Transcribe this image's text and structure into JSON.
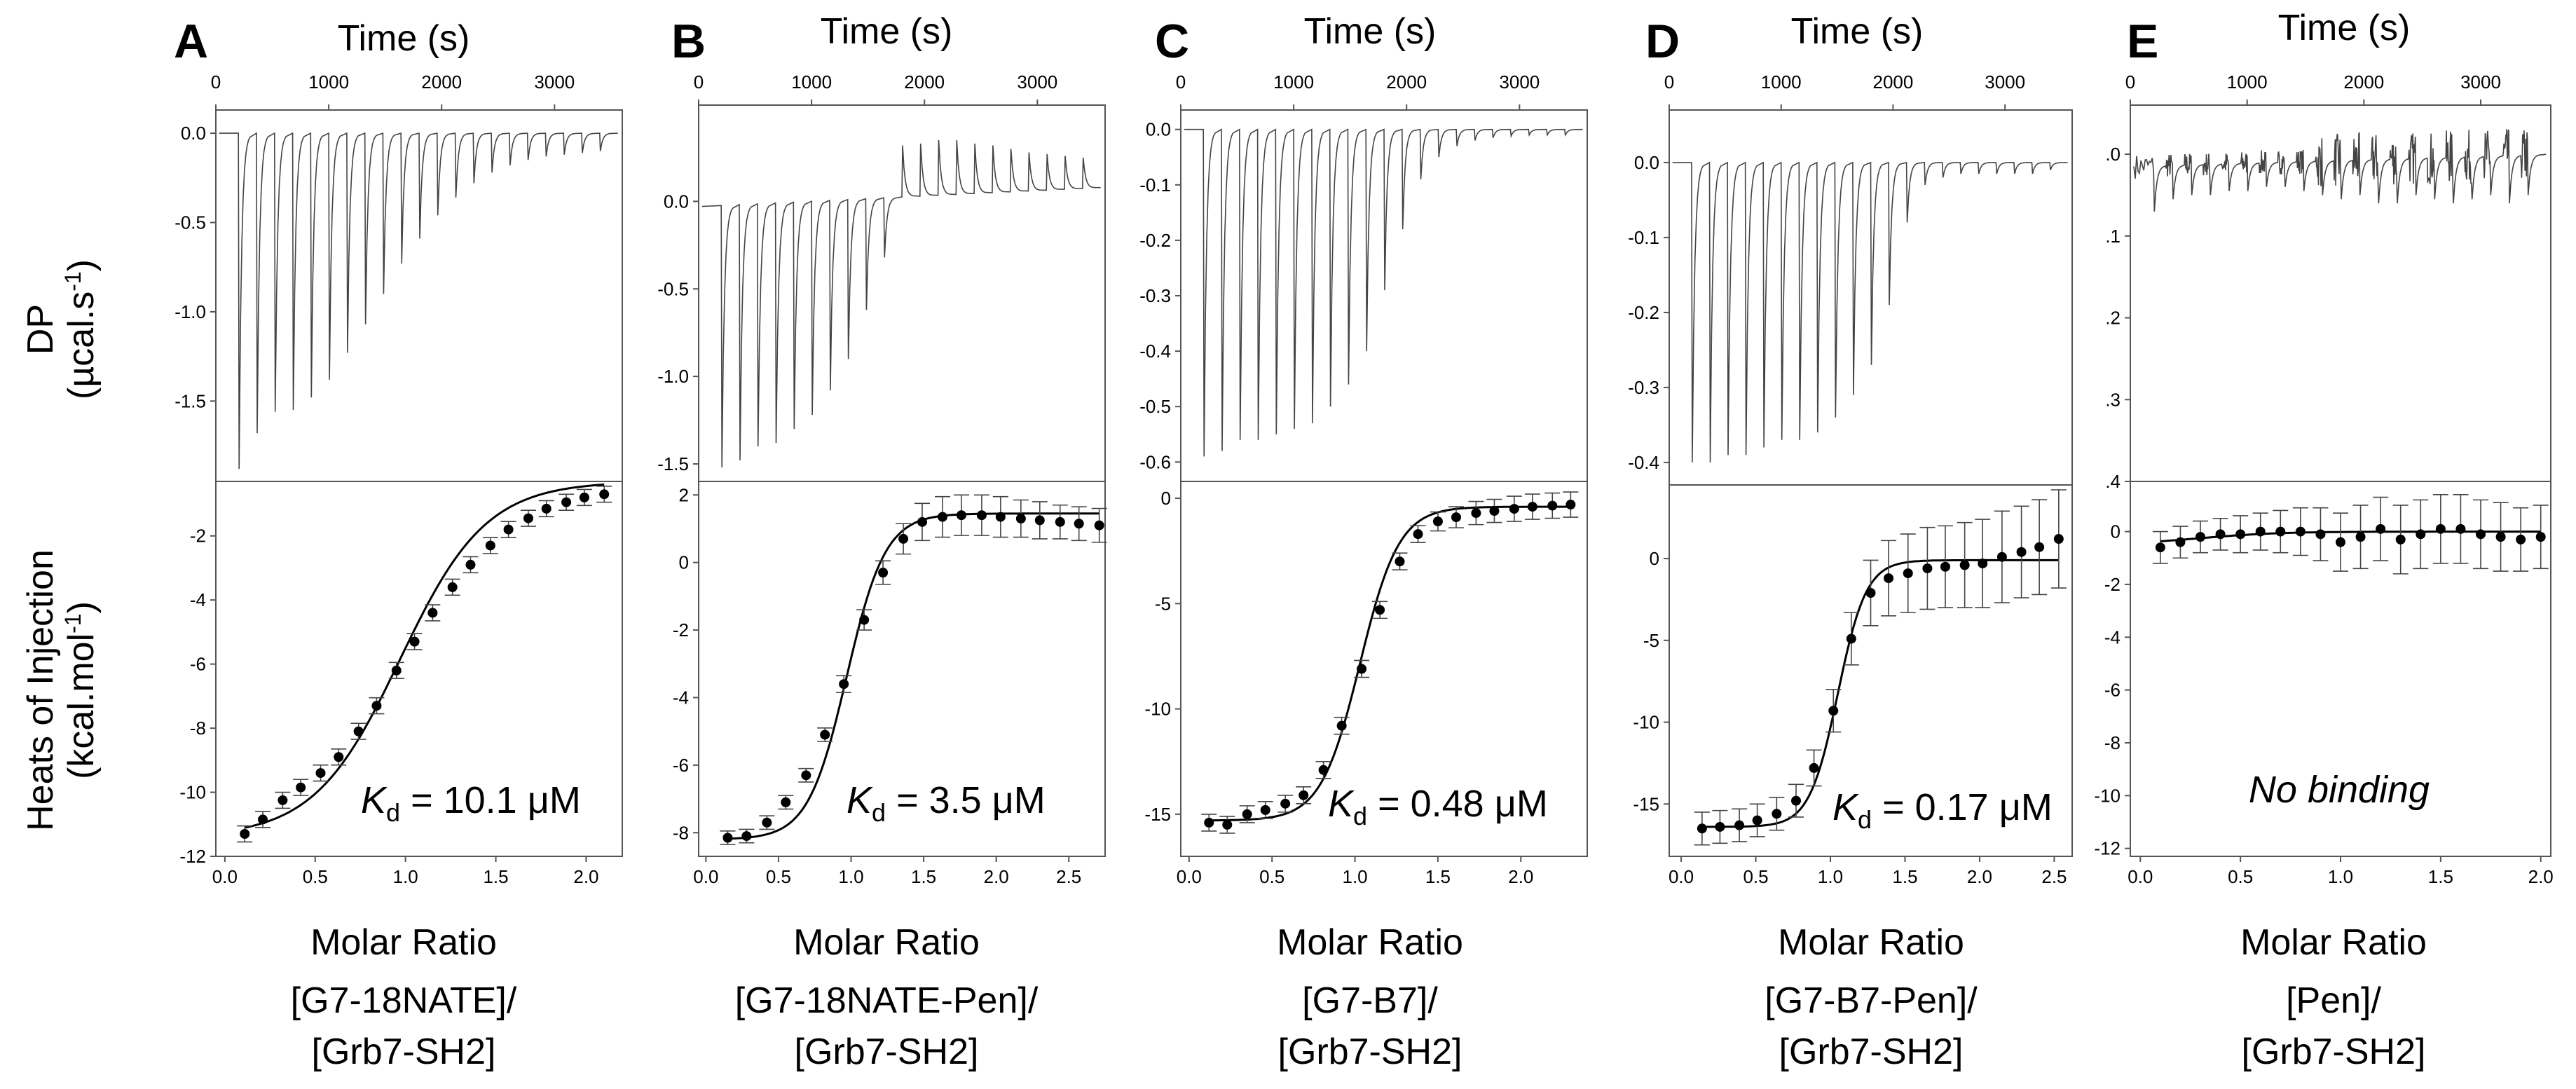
{
  "figure": {
    "ylabel_top_line1": "DP",
    "ylabel_top_line2": "(µcal.s",
    "ylabel_top_sup": "-1",
    "ylabel_top_close": ")",
    "ylabel_bottom_line1": "Heats of Injection",
    "ylabel_bottom_line2": "(kcal.mol",
    "ylabel_bottom_sup": "-1",
    "ylabel_bottom_close": ")"
  },
  "chart_data": [
    {
      "type": "line",
      "panel": "A",
      "top": {
        "xlabel": "Time (s)",
        "xlim": [
          0,
          3600
        ],
        "xticks": [
          0,
          1000,
          2000,
          3000
        ],
        "xtick_labels": [
          "0",
          "1000",
          "2000",
          "3000"
        ],
        "ylim": [
          -1.95,
          0.13
        ],
        "yticks": [
          0.0,
          -0.5,
          -1.0,
          -1.5
        ],
        "ytick_labels": [
          "0.0",
          "-0.5",
          "-1.0",
          "-1.5"
        ],
        "baseline": [
          0.0,
          0.0
        ],
        "first_injection_time": 200,
        "injection_interval": 160,
        "peaks": [
          -1.88,
          -1.68,
          -1.56,
          -1.55,
          -1.48,
          -1.38,
          -1.23,
          -1.07,
          -0.9,
          -0.73,
          -0.59,
          -0.46,
          -0.36,
          -0.28,
          -0.22,
          -0.18,
          -0.15,
          -0.13,
          -0.12,
          -0.11,
          -0.1
        ]
      },
      "bottom": {
        "xlabel": "Molar Ratio",
        "xlim": [
          -0.05,
          2.2
        ],
        "xticks": [
          0.0,
          0.5,
          1.0,
          1.5,
          2.0
        ],
        "xtick_labels": [
          "0.0",
          "0.5",
          "1.0",
          "1.5",
          "2.0"
        ],
        "ylim": [
          -12,
          -0.3
        ],
        "yticks": [
          -2,
          -4,
          -6,
          -8,
          -10,
          -12
        ],
        "ytick_labels": [
          "-2",
          "-4",
          "-6",
          "-8",
          "-10",
          "-12"
        ],
        "points_x": [
          0.11,
          0.21,
          0.32,
          0.42,
          0.53,
          0.63,
          0.74,
          0.84,
          0.95,
          1.05,
          1.15,
          1.26,
          1.36,
          1.47,
          1.57,
          1.68,
          1.78,
          1.89,
          1.99,
          2.1
        ],
        "points_y": [
          -11.3,
          -10.85,
          -10.25,
          -9.85,
          -9.4,
          -8.9,
          -8.1,
          -7.3,
          -6.2,
          -5.3,
          -4.4,
          -3.6,
          -2.9,
          -2.3,
          -1.8,
          -1.45,
          -1.15,
          -0.95,
          -0.8,
          -0.7
        ],
        "errors": [
          0.25,
          0.25,
          0.25,
          0.25,
          0.25,
          0.25,
          0.25,
          0.25,
          0.25,
          0.25,
          0.25,
          0.25,
          0.25,
          0.25,
          0.25,
          0.25,
          0.25,
          0.25,
          0.25,
          0.25
        ],
        "fit": {
          "lower": -11.4,
          "upper": -0.3,
          "center": 0.97,
          "slope": 4.2
        }
      },
      "annotation_symbol": "K",
      "annotation_sub": "d",
      "annotation_value": " = 10.1 μM",
      "molar_ratio_line1": "[G7-18NATE]/",
      "molar_ratio_line2": "[Grb7-SH2]"
    },
    {
      "type": "line",
      "panel": "B",
      "top": {
        "xlabel": "Time (s)",
        "xlim": [
          0,
          3600
        ],
        "xticks": [
          0,
          1000,
          2000,
          3000
        ],
        "xtick_labels": [
          "0",
          "1000",
          "2000",
          "3000"
        ],
        "ylim": [
          -1.6,
          0.55
        ],
        "yticks": [
          0.0,
          -0.5,
          -1.0,
          -1.5
        ],
        "ytick_labels": [
          "0.0",
          "-0.5",
          "-1.0",
          "-1.5"
        ],
        "baseline": [
          -0.03,
          0.08
        ],
        "first_injection_time": 200,
        "injection_interval": 160,
        "peaks": [
          -1.52,
          -1.48,
          -1.4,
          -1.38,
          -1.3,
          -1.22,
          -1.08,
          -0.9,
          -0.62,
          -0.32,
          0.32,
          0.33,
          0.35,
          0.35,
          0.33,
          0.32,
          0.3,
          0.28,
          0.27,
          0.26,
          0.25
        ]
      },
      "bottom": {
        "xlabel": "Molar Ratio",
        "xlim": [
          -0.05,
          2.75
        ],
        "xticks": [
          0.0,
          0.5,
          1.0,
          1.5,
          2.0,
          2.5
        ],
        "xtick_labels": [
          "0.0",
          "0.5",
          "1.0",
          "1.5",
          "2.0",
          "2.5"
        ],
        "ylim": [
          -8.7,
          2.4
        ],
        "yticks": [
          2,
          0,
          -2,
          -4,
          -6,
          -8
        ],
        "ytick_labels": [
          "2",
          "0",
          "-2",
          "-4",
          "-6",
          "-8"
        ],
        "points_x": [
          0.15,
          0.28,
          0.42,
          0.55,
          0.69,
          0.82,
          0.95,
          1.09,
          1.22,
          1.36,
          1.49,
          1.63,
          1.76,
          1.9,
          2.03,
          2.17,
          2.3,
          2.44,
          2.57,
          2.71
        ],
        "points_y": [
          -8.15,
          -8.1,
          -7.7,
          -7.1,
          -6.3,
          -5.1,
          -3.6,
          -1.7,
          -0.3,
          0.7,
          1.2,
          1.35,
          1.4,
          1.4,
          1.35,
          1.3,
          1.25,
          1.2,
          1.15,
          1.1
        ],
        "errors": [
          0.2,
          0.2,
          0.2,
          0.2,
          0.2,
          0.2,
          0.25,
          0.3,
          0.35,
          0.45,
          0.55,
          0.6,
          0.6,
          0.6,
          0.6,
          0.55,
          0.55,
          0.5,
          0.5,
          0.5
        ],
        "fit": {
          "lower": -8.2,
          "upper": 1.45,
          "center": 0.97,
          "slope": 7.5
        }
      },
      "annotation_symbol": "K",
      "annotation_sub": "d",
      "annotation_value": " = 3.5 μM",
      "molar_ratio_line1": "[G7-18NATE-Pen]/",
      "molar_ratio_line2": "[Grb7-SH2]"
    },
    {
      "type": "line",
      "panel": "C",
      "top": {
        "xlabel": "Time (s)",
        "xlim": [
          0,
          3600
        ],
        "xticks": [
          0,
          1000,
          2000,
          3000
        ],
        "xtick_labels": [
          "0",
          "1000",
          "2000",
          "3000"
        ],
        "ylim": [
          -0.635,
          0.035
        ],
        "yticks": [
          0.0,
          -0.1,
          -0.2,
          -0.3,
          -0.4,
          -0.5,
          -0.6
        ],
        "ytick_labels": [
          "0.0",
          "-0.1",
          "-0.2",
          "-0.3",
          "-0.4",
          "-0.5",
          "-0.6"
        ],
        "baseline": [
          0.0,
          0.0
        ],
        "first_injection_time": 200,
        "injection_interval": 160,
        "peaks": [
          -0.59,
          -0.58,
          -0.56,
          -0.56,
          -0.55,
          -0.54,
          -0.53,
          -0.5,
          -0.46,
          -0.4,
          -0.29,
          -0.18,
          -0.09,
          -0.05,
          -0.03,
          -0.02,
          -0.015,
          -0.012,
          -0.01,
          -0.01,
          -0.01
        ]
      },
      "bottom": {
        "xlabel": "Molar Ratio",
        "xlim": [
          -0.05,
          2.4
        ],
        "xticks": [
          0.0,
          0.5,
          1.0,
          1.5,
          2.0
        ],
        "xtick_labels": [
          "0.0",
          "0.5",
          "1.0",
          "1.5",
          "2.0"
        ],
        "ylim": [
          -17,
          0.8
        ],
        "yticks": [
          0,
          -5,
          -10,
          -15
        ],
        "ytick_labels": [
          "0",
          "-5",
          "-10",
          "-15"
        ],
        "points_x": [
          0.12,
          0.23,
          0.35,
          0.46,
          0.58,
          0.69,
          0.81,
          0.92,
          1.04,
          1.15,
          1.27,
          1.38,
          1.5,
          1.61,
          1.73,
          1.84,
          1.96,
          2.07,
          2.19,
          2.3
        ],
        "points_y": [
          -15.4,
          -15.5,
          -15.0,
          -14.8,
          -14.5,
          -14.1,
          -12.9,
          -10.8,
          -8.1,
          -5.3,
          -3.0,
          -1.7,
          -1.1,
          -0.9,
          -0.7,
          -0.6,
          -0.5,
          -0.4,
          -0.35,
          -0.3
        ],
        "errors": [
          0.4,
          0.4,
          0.4,
          0.4,
          0.4,
          0.4,
          0.4,
          0.4,
          0.4,
          0.4,
          0.4,
          0.4,
          0.45,
          0.5,
          0.55,
          0.55,
          0.6,
          0.6,
          0.6,
          0.6
        ],
        "fit": {
          "lower": -15.3,
          "upper": -0.4,
          "center": 1.03,
          "slope": 8.5
        }
      },
      "annotation_symbol": "K",
      "annotation_sub": "d",
      "annotation_value": " = 0.48 μM",
      "molar_ratio_line1": "[G7-B7]/",
      "molar_ratio_line2": "[Grb7-SH2]"
    },
    {
      "type": "line",
      "panel": "D",
      "top": {
        "xlabel": "Time (s)",
        "xlim": [
          0,
          3600
        ],
        "xticks": [
          0,
          1000,
          2000,
          3000
        ],
        "xtick_labels": [
          "0",
          "1000",
          "2000",
          "3000"
        ],
        "ylim": [
          -0.43,
          0.07
        ],
        "yticks": [
          0.0,
          -0.1,
          -0.2,
          -0.3,
          -0.4
        ],
        "ytick_labels": [
          "0.0",
          "-0.1",
          "-0.2",
          "-0.3",
          "-0.4"
        ],
        "baseline": [
          0.0,
          0.0
        ],
        "first_injection_time": 200,
        "injection_interval": 160,
        "peaks": [
          -0.4,
          -0.4,
          -0.39,
          -0.39,
          -0.38,
          -0.37,
          -0.37,
          -0.36,
          -0.34,
          -0.31,
          -0.27,
          -0.19,
          -0.08,
          -0.03,
          -0.02,
          -0.015,
          -0.015,
          -0.015,
          -0.015,
          -0.015,
          -0.01
        ]
      },
      "bottom": {
        "xlabel": "Molar Ratio",
        "xlim": [
          -0.08,
          2.62
        ],
        "xticks": [
          0.0,
          0.5,
          1.0,
          1.5,
          2.0,
          2.5
        ],
        "xtick_labels": [
          "0.0",
          "0.5",
          "1.0",
          "1.5",
          "2.0",
          "2.5"
        ],
        "ylim": [
          -18.2,
          4.5
        ],
        "yticks": [
          0,
          -5,
          -10,
          -15
        ],
        "ytick_labels": [
          "0",
          "-5",
          "-10",
          "-15"
        ],
        "points_x": [
          0.14,
          0.26,
          0.39,
          0.51,
          0.64,
          0.77,
          0.89,
          1.02,
          1.14,
          1.27,
          1.39,
          1.52,
          1.65,
          1.77,
          1.9,
          2.02,
          2.15,
          2.28,
          2.4,
          2.53
        ],
        "points_y": [
          -16.5,
          -16.4,
          -16.3,
          -16.0,
          -15.6,
          -14.8,
          -12.8,
          -9.3,
          -4.9,
          -2.1,
          -1.2,
          -0.9,
          -0.6,
          -0.5,
          -0.4,
          -0.3,
          0.1,
          0.4,
          0.7,
          1.2
        ],
        "errors": [
          1.0,
          1.0,
          1.0,
          1.0,
          1.0,
          1.0,
          1.1,
          1.3,
          1.6,
          2.0,
          2.3,
          2.4,
          2.5,
          2.5,
          2.6,
          2.7,
          2.8,
          2.8,
          2.9,
          3.0
        ],
        "fit": {
          "lower": -16.4,
          "upper": -0.1,
          "center": 1.05,
          "slope": 10.5
        }
      },
      "annotation_symbol": "K",
      "annotation_sub": "d",
      "annotation_value": " = 0.17 μM",
      "molar_ratio_line1": "[G7-B7-Pen]/",
      "molar_ratio_line2": "[Grb7-SH2]"
    },
    {
      "type": "line",
      "panel": "E",
      "top": {
        "xlabel": "Time (s)",
        "xlim": [
          0,
          3600
        ],
        "xticks": [
          0,
          1000,
          2000,
          3000
        ],
        "xtick_labels": [
          "0",
          "1000",
          "2000",
          "3000"
        ],
        "ylim": [
          -0.4,
          0.06
        ],
        "yticks": [
          0.0,
          -0.1,
          -0.2,
          -0.3,
          -0.4
        ],
        "ytick_labels": [
          ".0",
          ".1",
          ".2",
          ".3",
          ".4"
        ],
        "baseline": [
          -0.015,
          0.0
        ],
        "first_injection_time": 200,
        "injection_interval": 160,
        "peaks": [
          -0.07,
          -0.055,
          -0.05,
          -0.05,
          -0.045,
          -0.045,
          -0.04,
          -0.04,
          -0.045,
          -0.05,
          -0.055,
          -0.05,
          -0.06,
          -0.06,
          -0.05,
          -0.055,
          -0.06,
          -0.055,
          -0.05,
          -0.06,
          -0.05
        ],
        "noise": 0.03
      },
      "bottom": {
        "xlabel": "Molar Ratio",
        "xlim": [
          -0.05,
          2.05
        ],
        "xticks": [
          0.0,
          0.5,
          1.0,
          1.5,
          2.0
        ],
        "xtick_labels": [
          "0.0",
          "0.5",
          "1.0",
          "1.5",
          "2.0"
        ],
        "ylim": [
          -12.3,
          1.9
        ],
        "yticks": [
          0,
          -2,
          -4,
          -6,
          -8,
          -10,
          -12
        ],
        "ytick_labels": [
          "0",
          "-2",
          "-4",
          "-6",
          "-8",
          "-10",
          "-12"
        ],
        "points_x": [
          0.1,
          0.2,
          0.3,
          0.4,
          0.5,
          0.6,
          0.7,
          0.8,
          0.9,
          1.0,
          1.1,
          1.2,
          1.3,
          1.4,
          1.5,
          1.6,
          1.7,
          1.8,
          1.9,
          2.0
        ],
        "points_y": [
          -0.6,
          -0.4,
          -0.2,
          -0.1,
          -0.1,
          0.0,
          0.0,
          0.0,
          -0.1,
          -0.4,
          -0.2,
          0.1,
          -0.3,
          -0.1,
          0.1,
          0.1,
          -0.1,
          -0.2,
          -0.3,
          -0.2
        ],
        "errors": [
          0.6,
          0.6,
          0.6,
          0.6,
          0.7,
          0.7,
          0.8,
          0.9,
          1.0,
          1.1,
          1.2,
          1.2,
          1.3,
          1.3,
          1.3,
          1.3,
          1.3,
          1.3,
          1.2,
          1.2
        ],
        "fit": {
          "lower": -0.5,
          "upper": 0.0,
          "center": 0.3,
          "slope": 5
        }
      },
      "annotation_text": "No binding",
      "molar_ratio_line1": "[Pen]/",
      "molar_ratio_line2": "[Grb7-SH2]"
    }
  ]
}
